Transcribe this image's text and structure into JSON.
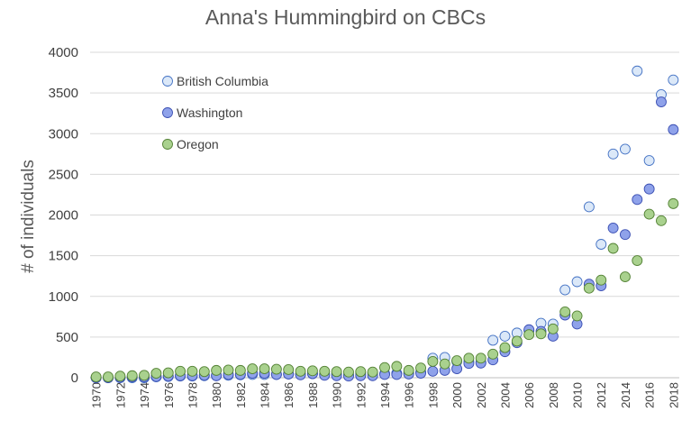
{
  "chart_data": {
    "type": "scatter",
    "title": "Anna's Hummingbird on CBCs",
    "xlabel": "",
    "ylabel": "# of individuals",
    "xlim": [
      1969.5,
      2018.5
    ],
    "ylim": [
      0,
      4000
    ],
    "yticks": [
      0,
      500,
      1000,
      1500,
      2000,
      2500,
      3000,
      3500,
      4000
    ],
    "xticks": [
      1970,
      1972,
      1974,
      1976,
      1978,
      1980,
      1982,
      1984,
      1986,
      1988,
      1990,
      1992,
      1994,
      1996,
      1998,
      2000,
      2002,
      2004,
      2006,
      2008,
      2010,
      2012,
      2014,
      2016,
      2018
    ],
    "grid": "horizontal",
    "legend_position": "top-left",
    "series": [
      {
        "name": "British Columbia",
        "fill": "#dbe8f8",
        "stroke": "#4472c4",
        "points": [
          [
            1970,
            0
          ],
          [
            1971,
            0
          ],
          [
            1972,
            0
          ],
          [
            1973,
            0
          ],
          [
            1974,
            0
          ],
          [
            1975,
            10
          ],
          [
            1976,
            15
          ],
          [
            1977,
            20
          ],
          [
            1978,
            20
          ],
          [
            1979,
            25
          ],
          [
            1980,
            25
          ],
          [
            1981,
            30
          ],
          [
            1982,
            35
          ],
          [
            1983,
            40
          ],
          [
            1984,
            40
          ],
          [
            1985,
            40
          ],
          [
            1986,
            45
          ],
          [
            1987,
            40
          ],
          [
            1988,
            50
          ],
          [
            1989,
            45
          ],
          [
            1990,
            45
          ],
          [
            1991,
            40
          ],
          [
            1992,
            50
          ],
          [
            1993,
            55
          ],
          [
            1994,
            50
          ],
          [
            1995,
            55
          ],
          [
            1996,
            60
          ],
          [
            1997,
            70
          ],
          [
            1998,
            240
          ],
          [
            1999,
            250
          ],
          [
            2000,
            200
          ],
          [
            2001,
            200
          ],
          [
            2002,
            190
          ],
          [
            2003,
            460
          ],
          [
            2004,
            510
          ],
          [
            2005,
            550
          ],
          [
            2006,
            580
          ],
          [
            2007,
            670
          ],
          [
            2008,
            660
          ],
          [
            2009,
            1080
          ],
          [
            2010,
            1180
          ],
          [
            2011,
            2100
          ],
          [
            2012,
            1640
          ],
          [
            2013,
            2750
          ],
          [
            2014,
            2810
          ],
          [
            2015,
            3770
          ],
          [
            2016,
            2670
          ],
          [
            2017,
            3480
          ],
          [
            2018,
            3660
          ]
        ]
      },
      {
        "name": "Washington",
        "fill": "#8fa2ea",
        "stroke": "#3b4fb3",
        "points": [
          [
            1970,
            0
          ],
          [
            1971,
            0
          ],
          [
            1972,
            5
          ],
          [
            1973,
            10
          ],
          [
            1974,
            10
          ],
          [
            1975,
            15
          ],
          [
            1976,
            20
          ],
          [
            1977,
            25
          ],
          [
            1978,
            25
          ],
          [
            1979,
            30
          ],
          [
            1980,
            25
          ],
          [
            1981,
            40
          ],
          [
            1982,
            40
          ],
          [
            1983,
            55
          ],
          [
            1984,
            55
          ],
          [
            1985,
            40
          ],
          [
            1986,
            45
          ],
          [
            1987,
            35
          ],
          [
            1988,
            50
          ],
          [
            1989,
            30
          ],
          [
            1990,
            25
          ],
          [
            1991,
            20
          ],
          [
            1992,
            25
          ],
          [
            1993,
            25
          ],
          [
            1994,
            40
          ],
          [
            1995,
            40
          ],
          [
            1996,
            45
          ],
          [
            1997,
            55
          ],
          [
            1998,
            80
          ],
          [
            1999,
            90
          ],
          [
            2000,
            110
          ],
          [
            2001,
            175
          ],
          [
            2002,
            180
          ],
          [
            2003,
            220
          ],
          [
            2004,
            320
          ],
          [
            2005,
            430
          ],
          [
            2006,
            590
          ],
          [
            2007,
            570
          ],
          [
            2008,
            510
          ],
          [
            2009,
            770
          ],
          [
            2010,
            660
          ],
          [
            2011,
            1150
          ],
          [
            2012,
            1130
          ],
          [
            2013,
            1840
          ],
          [
            2014,
            1760
          ],
          [
            2015,
            2190
          ],
          [
            2016,
            2320
          ],
          [
            2017,
            3390
          ],
          [
            2018,
            3050
          ]
        ]
      },
      {
        "name": "Oregon",
        "fill": "#a9d18e",
        "stroke": "#548235",
        "points": [
          [
            1970,
            10
          ],
          [
            1971,
            10
          ],
          [
            1972,
            20
          ],
          [
            1973,
            25
          ],
          [
            1974,
            30
          ],
          [
            1975,
            55
          ],
          [
            1976,
            60
          ],
          [
            1977,
            80
          ],
          [
            1978,
            80
          ],
          [
            1979,
            75
          ],
          [
            1980,
            90
          ],
          [
            1981,
            95
          ],
          [
            1982,
            90
          ],
          [
            1983,
            110
          ],
          [
            1984,
            110
          ],
          [
            1985,
            105
          ],
          [
            1986,
            100
          ],
          [
            1987,
            80
          ],
          [
            1988,
            85
          ],
          [
            1989,
            80
          ],
          [
            1990,
            75
          ],
          [
            1991,
            70
          ],
          [
            1992,
            75
          ],
          [
            1993,
            70
          ],
          [
            1994,
            125
          ],
          [
            1995,
            140
          ],
          [
            1996,
            90
          ],
          [
            1997,
            120
          ],
          [
            1998,
            200
          ],
          [
            1999,
            170
          ],
          [
            2000,
            210
          ],
          [
            2001,
            240
          ],
          [
            2002,
            240
          ],
          [
            2003,
            290
          ],
          [
            2004,
            370
          ],
          [
            2005,
            450
          ],
          [
            2006,
            530
          ],
          [
            2007,
            540
          ],
          [
            2008,
            600
          ],
          [
            2009,
            810
          ],
          [
            2010,
            760
          ],
          [
            2011,
            1100
          ],
          [
            2012,
            1200
          ],
          [
            2013,
            1590
          ],
          [
            2014,
            1240
          ],
          [
            2015,
            1440
          ],
          [
            2016,
            2010
          ],
          [
            2017,
            1930
          ],
          [
            2018,
            2140
          ]
        ]
      }
    ]
  }
}
